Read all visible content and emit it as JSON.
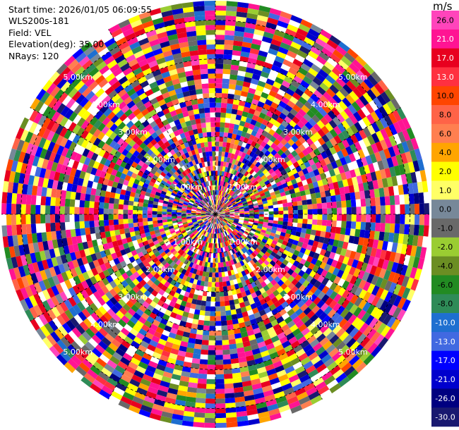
{
  "header": {
    "start_time": "Start time: 2026/01/05 06:09:55",
    "instrument": "WLS200s-181",
    "field": "Field: VEL",
    "elevation": "Elevation(deg): 35.00",
    "nrays": "NRays: 120"
  },
  "chart_data": {
    "type": "heatmap",
    "projection": "polar-ppi",
    "field": "VEL",
    "unit": "m/s",
    "elevation_deg": 35.0,
    "n_rays": 120,
    "range_rings_km": [
      1.0,
      2.0,
      3.0,
      4.0,
      5.0
    ],
    "range_ring_labels": [
      "1.00km",
      "2.00km",
      "3.00km",
      "4.00km",
      "5.00km"
    ],
    "max_range_km": 5.5,
    "colorbar": {
      "unit_label": "m/s",
      "ticks": [
        "26.0",
        "21.0",
        "17.0",
        "13.0",
        "10.0",
        "8.0",
        "6.0",
        "4.0",
        "2.0",
        "1.0",
        "0.0",
        "-1.0",
        "-2.0",
        "-4.0",
        "-6.0",
        "-8.0",
        "-10.0",
        "-13.0",
        "-17.0",
        "-21.0",
        "-26.0",
        "-30.0"
      ],
      "bins": [
        {
          "from": 26,
          "to": 30,
          "color": "#ff44bb"
        },
        {
          "from": 21,
          "to": 26,
          "color": "#ff1493"
        },
        {
          "from": 17,
          "to": 21,
          "color": "#e8001f"
        },
        {
          "from": 13,
          "to": 17,
          "color": "#ff3040"
        },
        {
          "from": 10,
          "to": 13,
          "color": "#ff4500"
        },
        {
          "from": 8,
          "to": 10,
          "color": "#ff6347"
        },
        {
          "from": 6,
          "to": 8,
          "color": "#ff7f50"
        },
        {
          "from": 4,
          "to": 6,
          "color": "#ffa500"
        },
        {
          "from": 2,
          "to": 4,
          "color": "#ffff00"
        },
        {
          "from": 1,
          "to": 2,
          "color": "#ffff66"
        },
        {
          "from": 0,
          "to": 1,
          "color": "#778899"
        },
        {
          "from": -1,
          "to": 0,
          "color": "#696969"
        },
        {
          "from": -2,
          "to": -1,
          "color": "#9acd32"
        },
        {
          "from": -4,
          "to": -2,
          "color": "#6b8e23"
        },
        {
          "from": -6,
          "to": -4,
          "color": "#228b22"
        },
        {
          "from": -8,
          "to": -6,
          "color": "#2e8b57"
        },
        {
          "from": -10,
          "to": -8,
          "color": "#1e6fd0"
        },
        {
          "from": -13,
          "to": -10,
          "color": "#4169e1"
        },
        {
          "from": -17,
          "to": -13,
          "color": "#0000ff"
        },
        {
          "from": -21,
          "to": -17,
          "color": "#0000cd"
        },
        {
          "from": -26,
          "to": -21,
          "color": "#000080"
        },
        {
          "from": -30,
          "to": -26,
          "color": "#191970"
        }
      ]
    }
  }
}
